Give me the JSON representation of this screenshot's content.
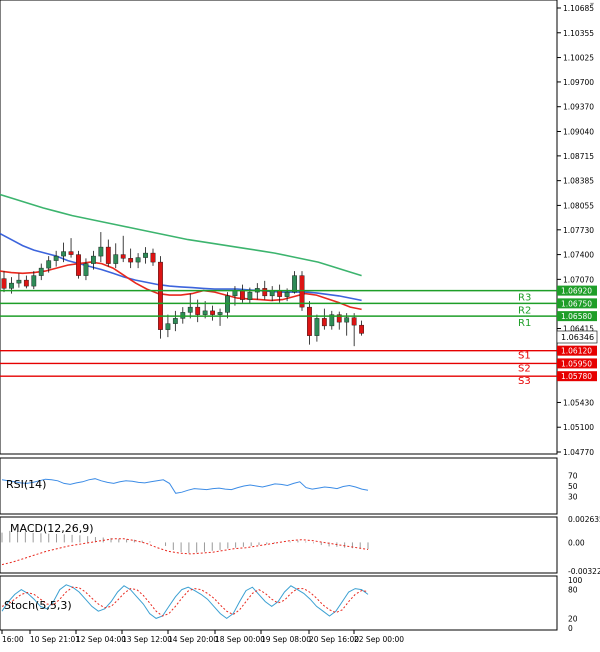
{
  "colors": {
    "bull": "#2e8b57",
    "bear": "#dc1414",
    "ma_fast": "#e8281e",
    "ma_mid": "#3c64dc",
    "ma_slow": "#3cb46e",
    "resistance": "#1e9e28",
    "support": "#e60000",
    "rsi": "#3c8ce6",
    "macd_hist": "#9a9a9a",
    "macd_signal": "#e8281e",
    "stoch_main": "#3ca0d2",
    "stoch_signal": "#e8281e"
  },
  "price_scale": {
    "ticks": [
      "1.10685",
      "1.10355",
      "1.10025",
      "1.09700",
      "1.09370",
      "1.09040",
      "1.08715",
      "1.08385",
      "1.08055",
      "1.07730",
      "1.07400",
      "1.07070",
      "1.06415",
      "1.05430",
      "1.05100",
      "1.04770"
    ],
    "min": 1.0477,
    "max": 1.10685
  },
  "current_price": "1.06346",
  "levels": [
    {
      "name": "R3",
      "value": 1.0692,
      "label": "1.06920",
      "type": "resistance"
    },
    {
      "name": "R2",
      "value": 1.0675,
      "label": "1.06750",
      "type": "resistance"
    },
    {
      "name": "R1",
      "value": 1.0658,
      "label": "1.06580",
      "type": "resistance"
    },
    {
      "name": "S1",
      "value": 1.0612,
      "label": "1.06120",
      "type": "support"
    },
    {
      "name": "S2",
      "value": 1.0595,
      "label": "1.05950",
      "type": "support"
    },
    {
      "name": "S3",
      "value": 1.0578,
      "label": "1.05780",
      "type": "support"
    }
  ],
  "time_axis": [
    "16:00",
    "10 Sep 21:01",
    "12 Sep 04:00",
    "13 Sep 12:00",
    "14 Sep 20:00",
    "18 Sep 00:00",
    "19 Sep 08:00",
    "20 Sep 16:00",
    "22 Sep 00:00"
  ],
  "candles": [
    {
      "o": 1.0708,
      "h": 1.0718,
      "l": 1.069,
      "c": 1.0695
    },
    {
      "o": 1.0695,
      "h": 1.071,
      "l": 1.0688,
      "c": 1.0702
    },
    {
      "o": 1.0702,
      "h": 1.0715,
      "l": 1.0696,
      "c": 1.0706
    },
    {
      "o": 1.0706,
      "h": 1.0712,
      "l": 1.0695,
      "c": 1.0698
    },
    {
      "o": 1.0698,
      "h": 1.0718,
      "l": 1.0694,
      "c": 1.0712
    },
    {
      "o": 1.0712,
      "h": 1.0728,
      "l": 1.0706,
      "c": 1.0722
    },
    {
      "o": 1.0722,
      "h": 1.0738,
      "l": 1.0716,
      "c": 1.0732
    },
    {
      "o": 1.0732,
      "h": 1.0745,
      "l": 1.0724,
      "c": 1.0738
    },
    {
      "o": 1.0738,
      "h": 1.0756,
      "l": 1.073,
      "c": 1.0744
    },
    {
      "o": 1.0744,
      "h": 1.0762,
      "l": 1.0736,
      "c": 1.074
    },
    {
      "o": 1.074,
      "h": 1.0745,
      "l": 1.0708,
      "c": 1.0712
    },
    {
      "o": 1.0712,
      "h": 1.0735,
      "l": 1.0706,
      "c": 1.0728
    },
    {
      "o": 1.0728,
      "h": 1.0745,
      "l": 1.072,
      "c": 1.0738
    },
    {
      "o": 1.0738,
      "h": 1.077,
      "l": 1.073,
      "c": 1.075
    },
    {
      "o": 1.075,
      "h": 1.076,
      "l": 1.0724,
      "c": 1.0728
    },
    {
      "o": 1.0728,
      "h": 1.0755,
      "l": 1.0722,
      "c": 1.074
    },
    {
      "o": 1.074,
      "h": 1.0765,
      "l": 1.073,
      "c": 1.0735
    },
    {
      "o": 1.0735,
      "h": 1.0748,
      "l": 1.0722,
      "c": 1.073
    },
    {
      "o": 1.073,
      "h": 1.0742,
      "l": 1.0722,
      "c": 1.0736
    },
    {
      "o": 1.0736,
      "h": 1.075,
      "l": 1.0728,
      "c": 1.0742
    },
    {
      "o": 1.0742,
      "h": 1.0748,
      "l": 1.0725,
      "c": 1.073
    },
    {
      "o": 1.073,
      "h": 1.0738,
      "l": 1.0628,
      "c": 1.064
    },
    {
      "o": 1.064,
      "h": 1.066,
      "l": 1.063,
      "c": 1.0648
    },
    {
      "o": 1.0648,
      "h": 1.0665,
      "l": 1.0638,
      "c": 1.0655
    },
    {
      "o": 1.0655,
      "h": 1.067,
      "l": 1.0648,
      "c": 1.0663
    },
    {
      "o": 1.0663,
      "h": 1.0688,
      "l": 1.0655,
      "c": 1.067
    },
    {
      "o": 1.067,
      "h": 1.068,
      "l": 1.065,
      "c": 1.066
    },
    {
      "o": 1.066,
      "h": 1.0678,
      "l": 1.0655,
      "c": 1.0665
    },
    {
      "o": 1.0665,
      "h": 1.0672,
      "l": 1.0652,
      "c": 1.066
    },
    {
      "o": 1.066,
      "h": 1.0668,
      "l": 1.0645,
      "c": 1.0663
    },
    {
      "o": 1.0663,
      "h": 1.069,
      "l": 1.0655,
      "c": 1.0685
    },
    {
      "o": 1.0685,
      "h": 1.0698,
      "l": 1.0672,
      "c": 1.0692
    },
    {
      "o": 1.0692,
      "h": 1.07,
      "l": 1.0676,
      "c": 1.068
    },
    {
      "o": 1.068,
      "h": 1.0696,
      "l": 1.0675,
      "c": 1.069
    },
    {
      "o": 1.069,
      "h": 1.0702,
      "l": 1.068,
      "c": 1.0695
    },
    {
      "o": 1.0695,
      "h": 1.0705,
      "l": 1.068,
      "c": 1.0685
    },
    {
      "o": 1.0685,
      "h": 1.0698,
      "l": 1.0678,
      "c": 1.0692
    },
    {
      "o": 1.0692,
      "h": 1.07,
      "l": 1.0676,
      "c": 1.0684
    },
    {
      "o": 1.0684,
      "h": 1.0695,
      "l": 1.0678,
      "c": 1.069
    },
    {
      "o": 1.069,
      "h": 1.0718,
      "l": 1.0688,
      "c": 1.0712
    },
    {
      "o": 1.0712,
      "h": 1.0718,
      "l": 1.0665,
      "c": 1.067
    },
    {
      "o": 1.067,
      "h": 1.0678,
      "l": 1.062,
      "c": 1.0632
    },
    {
      "o": 1.0632,
      "h": 1.066,
      "l": 1.0624,
      "c": 1.0655
    },
    {
      "o": 1.0655,
      "h": 1.0668,
      "l": 1.064,
      "c": 1.0645
    },
    {
      "o": 1.0645,
      "h": 1.0665,
      "l": 1.064,
      "c": 1.066
    },
    {
      "o": 1.066,
      "h": 1.0664,
      "l": 1.064,
      "c": 1.065
    },
    {
      "o": 1.065,
      "h": 1.0662,
      "l": 1.0632,
      "c": 1.0656
    },
    {
      "o": 1.0656,
      "h": 1.0662,
      "l": 1.0618,
      "c": 1.0646
    },
    {
      "o": 1.0646,
      "h": 1.0652,
      "l": 1.0632,
      "c": 1.0635
    }
  ],
  "ma_fast": [
    1.0718,
    1.0716,
    1.0715,
    1.0716,
    1.0718,
    1.0722,
    1.0726,
    1.0728,
    1.073,
    1.0728,
    1.0722,
    1.0712,
    1.0702,
    1.0694,
    1.0688,
    1.0686,
    1.0686,
    1.0688,
    1.0692,
    1.069,
    1.0686,
    1.0682,
    1.0681,
    1.068,
    1.0679,
    1.068,
    1.0684,
    1.0688,
    1.0686,
    1.0681,
    1.0676,
    1.067,
    1.0667
  ],
  "ma_mid": [
    1.0768,
    1.076,
    1.0752,
    1.0746,
    1.0742,
    1.0738,
    1.0732,
    1.0728,
    1.0724,
    1.072,
    1.0715,
    1.071,
    1.0706,
    1.0703,
    1.07,
    1.0698,
    1.0697,
    1.0696,
    1.0695,
    1.0694,
    1.0694,
    1.0694,
    1.0693,
    1.0692,
    1.0691,
    1.069,
    1.069,
    1.069,
    1.0689,
    1.0687,
    1.0685,
    1.0682,
    1.0679
  ],
  "ma_slow": [
    1.082,
    1.0814,
    1.0808,
    1.0802,
    1.0797,
    1.0792,
    1.0788,
    1.0784,
    1.078,
    1.0776,
    1.0772,
    1.0768,
    1.0764,
    1.076,
    1.0757,
    1.0754,
    1.0751,
    1.0748,
    1.0745,
    1.0742,
    1.0738,
    1.0734,
    1.073,
    1.0724,
    1.0718,
    1.0712
  ],
  "rsi": {
    "label": "RSI(14)",
    "ticks": [
      "70",
      "50",
      "30"
    ],
    "values": [
      62,
      60,
      58,
      56,
      55,
      57,
      60,
      63,
      62,
      60,
      55,
      53,
      56,
      58,
      62,
      64,
      60,
      57,
      55,
      58,
      60,
      59,
      57,
      56,
      58,
      60,
      62,
      55,
      36,
      38,
      42,
      45,
      44,
      43,
      45,
      46,
      44,
      43,
      47,
      50,
      52,
      50,
      48,
      51,
      54,
      53,
      51,
      55,
      58,
      47,
      44,
      46,
      48,
      47,
      45,
      49,
      51,
      48,
      44,
      42
    ],
    "min": 0,
    "max": 100
  },
  "macd": {
    "label": "MACD(12,26,9)",
    "ticks": [
      "0.002635",
      "0.00",
      "-0.00322"
    ],
    "histogram": [
      0.0011,
      0.0013,
      0.00125,
      0.00115,
      0.00108,
      0.00102,
      0.00098,
      0.00095,
      0.0009,
      0.00085,
      0.0008,
      0.0007,
      0.0006,
      0.00055,
      0.0005,
      0.0004,
      0.00035,
      0.0003,
      0.0002,
      0.0001,
      0.0,
      -0.0004,
      -0.00085,
      -0.0011,
      -0.0012,
      -0.00115,
      -0.00105,
      -0.00095,
      -0.00085,
      -0.0007,
      -0.0006,
      -0.0005,
      -0.0004,
      -0.0003,
      -0.0002,
      -0.0001,
      0.0,
      0.0001,
      0.0002,
      0.0001,
      -0.0001,
      -0.0003,
      -0.00045,
      -0.0005,
      -0.0006,
      -0.00065,
      -0.0007,
      -0.00075
    ],
    "signal": [
      -0.0025,
      -0.0022,
      -0.0018,
      -0.0014,
      -0.001,
      -0.0007,
      -0.0004,
      -0.0002,
      0.0,
      0.0002,
      0.0004,
      0.0004,
      0.0002,
      -0.0001,
      -0.0006,
      -0.001,
      -0.0012,
      -0.0013,
      -0.0012,
      -0.0011,
      -0.0009,
      -0.0007,
      -0.0006,
      -0.0004,
      -0.0002,
      0.0,
      0.0002,
      0.0003,
      0.0002,
      0.0,
      -0.0002,
      -0.0004,
      -0.0006,
      -0.0008
    ],
    "min": -0.00322,
    "max": 0.002635
  },
  "stoch": {
    "label": "Stoch(5,5,3)",
    "ticks_top": [
      "100",
      "80"
    ],
    "ticks_bottom": [
      "20",
      "0"
    ],
    "main": [
      35,
      55,
      70,
      80,
      72,
      60,
      45,
      40,
      55,
      80,
      90,
      85,
      75,
      60,
      45,
      35,
      40,
      55,
      75,
      88,
      80,
      65,
      50,
      30,
      20,
      25,
      45,
      65,
      80,
      85,
      78,
      70,
      60,
      45,
      30,
      20,
      30,
      55,
      78,
      85,
      70,
      55,
      45,
      55,
      75,
      88,
      80,
      72,
      60,
      45,
      35,
      25,
      35,
      55,
      75,
      82,
      80,
      70
    ],
    "signal": [
      45,
      50,
      60,
      70,
      74,
      70,
      60,
      50,
      48,
      60,
      75,
      85,
      84,
      75,
      62,
      50,
      42,
      45,
      58,
      72,
      82,
      80,
      68,
      52,
      35,
      25,
      30,
      45,
      62,
      77,
      82,
      80,
      72,
      62,
      48,
      35,
      28,
      38,
      55,
      72,
      80,
      72,
      60,
      52,
      58,
      72,
      82,
      82,
      74,
      62,
      48,
      38,
      32,
      38,
      55,
      70,
      78,
      76
    ]
  }
}
